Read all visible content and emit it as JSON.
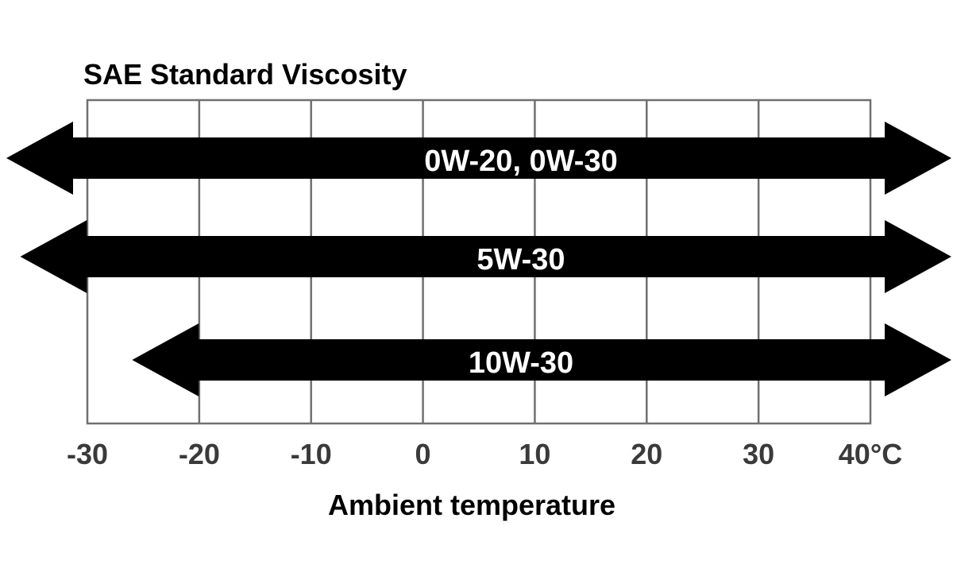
{
  "chart_data": {
    "type": "range-bar",
    "title": "SAE Standard Viscosity",
    "xlabel": "Ambient temperature",
    "x_ticks": [
      -30,
      -20,
      -10,
      0,
      10,
      20,
      30,
      40
    ],
    "x_tick_labels": [
      "-30",
      "-20",
      "-10",
      "0",
      "10",
      "20",
      "30",
      "40°C"
    ],
    "xlim": [
      -30,
      40
    ],
    "grid": true,
    "series": [
      {
        "name": "0W-20, 0W-30",
        "min": -30,
        "max": 40,
        "extends_below": true,
        "extends_above": true
      },
      {
        "name": "5W-30",
        "min": -30,
        "max": 40,
        "extends_below": false,
        "extends_above": true
      },
      {
        "name": "10W-30",
        "min": -20,
        "max": 40,
        "extends_below": false,
        "extends_above": true
      }
    ],
    "colors": {
      "arrow": "#000000",
      "arrow_text": "#ffffff",
      "grid": "#707070",
      "text": "#000000"
    }
  }
}
